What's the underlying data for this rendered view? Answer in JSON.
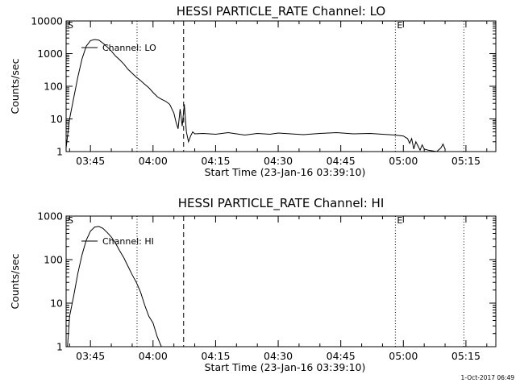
{
  "footer_text": "1-Oct-2017 06:49",
  "chart_data": [
    {
      "type": "line",
      "title": "HESSI PARTICLE_RATE Channel: LO",
      "xlabel": "Start Time (23-Jan-16 03:39:10)",
      "ylabel": "Counts/sec",
      "yscale": "log",
      "ylim": [
        1,
        10000
      ],
      "xlim": [
        "03:39:10",
        "05:22:10"
      ],
      "x_tick_labels": [
        "03:45",
        "04:00",
        "04:15",
        "04:30",
        "04:45",
        "05:00",
        "05:15"
      ],
      "y_tick_labels": [
        "1",
        "10",
        "100",
        "1000",
        "10000"
      ],
      "grid": false,
      "legend": {
        "placement": "top-left",
        "entries": [
          "Channel: LO"
        ]
      },
      "series": [
        {
          "name": "Channel: LO",
          "x": [
            "03:39:10",
            "03:40:00",
            "03:41:00",
            "03:42:00",
            "03:43:00",
            "03:44:00",
            "03:45:00",
            "03:46:00",
            "03:47:00",
            "03:48:00",
            "03:49:00",
            "03:50:00",
            "03:51:00",
            "03:52:00",
            "03:53:00",
            "03:54:00",
            "03:55:00",
            "03:56:00",
            "03:57:00",
            "03:58:00",
            "03:59:00",
            "04:00:00",
            "04:01:00",
            "04:02:00",
            "04:03:00",
            "04:04:00",
            "04:05:00",
            "04:05:30",
            "04:06:00",
            "04:06:30",
            "04:07:00",
            "04:07:30",
            "04:08:00",
            "04:08:30",
            "04:09:00",
            "04:09:30",
            "04:10:00",
            "04:12:00",
            "04:15:00",
            "04:18:00",
            "04:20:00",
            "04:22:00",
            "04:25:00",
            "04:28:00",
            "04:30:00",
            "04:33:00",
            "04:36:00",
            "04:40:00",
            "04:44:00",
            "04:48:00",
            "04:52:00",
            "04:55:00",
            "04:58:00",
            "05:00:00",
            "05:01:00",
            "05:01:30",
            "05:02:00",
            "05:02:30",
            "05:03:00",
            "05:03:30",
            "05:04:00",
            "05:04:30",
            "05:05:00",
            "05:06:00",
            "05:08:00",
            "05:09:00",
            "05:09:30",
            "05:10:00"
          ],
          "values": [
            1.3,
            10,
            45,
            200,
            700,
            1700,
            2500,
            2700,
            2600,
            2100,
            1600,
            1200,
            850,
            650,
            480,
            330,
            250,
            190,
            150,
            115,
            90,
            65,
            48,
            40,
            35,
            28,
            15,
            8,
            5,
            20,
            6,
            28,
            4,
            2,
            3,
            4,
            3.5,
            3.6,
            3.4,
            3.8,
            3.5,
            3.2,
            3.6,
            3.4,
            3.7,
            3.5,
            3.3,
            3.6,
            3.8,
            3.5,
            3.6,
            3.4,
            3.2,
            3,
            2.5,
            1.8,
            2.5,
            1.2,
            2,
            1.5,
            1.1,
            1.6,
            1.2,
            1.1,
            1,
            1.3,
            1.7,
            1.2
          ]
        }
      ],
      "annotations": {
        "start_marker": "S",
        "end_marker": "E",
        "dotted_lines_at": [
          "03:56:10",
          "04:58:05",
          "05:14:30"
        ],
        "dashed_line_at": "04:07:20"
      }
    },
    {
      "type": "line",
      "title": "HESSI PARTICLE_RATE Channel: HI",
      "xlabel": "Start Time (23-Jan-16 03:39:10)",
      "ylabel": "Counts/sec",
      "yscale": "log",
      "ylim": [
        1,
        1000
      ],
      "xlim": [
        "03:39:10",
        "05:22:10"
      ],
      "x_tick_labels": [
        "03:45",
        "04:00",
        "04:15",
        "04:30",
        "04:45",
        "05:00",
        "05:15"
      ],
      "y_tick_labels": [
        "1",
        "10",
        "100",
        "1000"
      ],
      "grid": false,
      "legend": {
        "placement": "top-left",
        "entries": [
          "Channel: HI"
        ]
      },
      "series": [
        {
          "name": "Channel: HI",
          "x": [
            "03:39:30",
            "03:40:00",
            "03:41:00",
            "03:42:00",
            "03:43:00",
            "03:44:00",
            "03:45:00",
            "03:46:00",
            "03:47:00",
            "03:48:00",
            "03:49:00",
            "03:50:00",
            "03:51:00",
            "03:52:00",
            "03:53:00",
            "03:54:00",
            "03:55:00",
            "03:56:00",
            "03:57:00",
            "03:58:00",
            "03:59:00",
            "04:00:00",
            "04:01:00",
            "04:02:00"
          ],
          "values": [
            1,
            5,
            15,
            50,
            130,
            280,
            450,
            560,
            580,
            520,
            420,
            330,
            240,
            160,
            110,
            70,
            45,
            30,
            18,
            9,
            5,
            3.5,
            1.7,
            1
          ]
        }
      ],
      "annotations": {
        "start_marker": "S",
        "end_marker": "E",
        "dotted_lines_at": [
          "03:56:10",
          "04:58:05",
          "05:14:30"
        ],
        "dashed_line_at": "04:07:20"
      }
    }
  ]
}
